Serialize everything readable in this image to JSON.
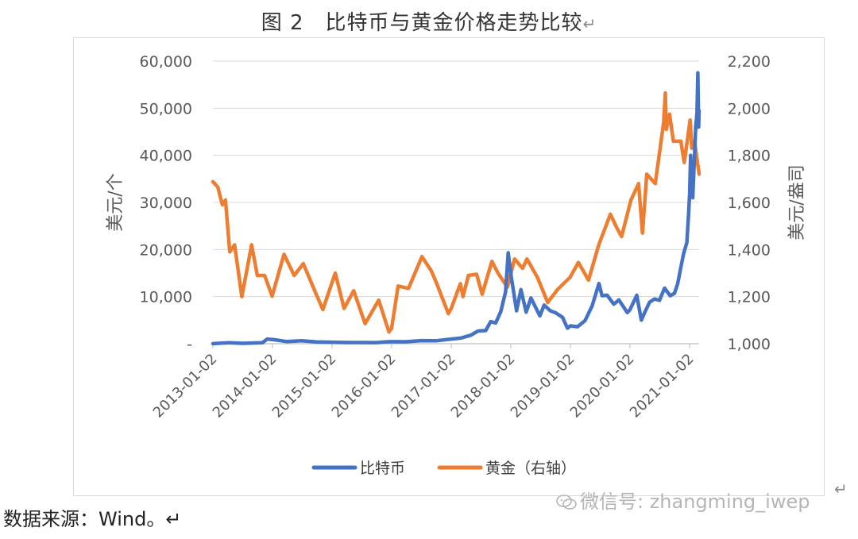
{
  "figure": {
    "title": "图 2　比特币与黄金价格走势比较",
    "return_mark": "↵"
  },
  "source_text": "数据来源：Wind。↵",
  "watermark": "微信号: zhangming_iwep",
  "colors": {
    "btc": "#4472c4",
    "gold": "#ed7d31",
    "grid": "#d9d9d9",
    "axis": "#bfbfbf"
  },
  "chart_data": {
    "type": "line",
    "title": "",
    "xlabel": "",
    "ylabel": "美元/个",
    "y2label": "美元/盎司",
    "xlim": [
      "2013-01-02",
      "2021-03-01"
    ],
    "ylim": [
      0,
      60000
    ],
    "y2lim": [
      1000,
      2200
    ],
    "x_ticks": [
      "2013-01-02",
      "2014-01-02",
      "2015-01-02",
      "2016-01-02",
      "2017-01-02",
      "2018-01-02",
      "2019-01-02",
      "2020-01-02",
      "2021-01-02"
    ],
    "y_ticks_left": [
      "-",
      "10,000",
      "20,000",
      "30,000",
      "40,000",
      "50,000",
      "60,000"
    ],
    "y_ticks_right": [
      "1,000",
      "1,200",
      "1,400",
      "1,600",
      "1,800",
      "2,000",
      "2,200"
    ],
    "legend_position": "bottom",
    "grid": true,
    "series": [
      {
        "name": "比特币",
        "axis": "left",
        "color": "#4472c4",
        "points": [
          [
            "2013-01-02",
            13
          ],
          [
            "2013-04-10",
            200
          ],
          [
            "2013-07-01",
            90
          ],
          [
            "2013-11-01",
            200
          ],
          [
            "2013-12-01",
            1000
          ],
          [
            "2014-01-15",
            850
          ],
          [
            "2014-04-01",
            450
          ],
          [
            "2014-07-01",
            620
          ],
          [
            "2014-10-01",
            380
          ],
          [
            "2015-01-02",
            320
          ],
          [
            "2015-04-01",
            250
          ],
          [
            "2015-07-01",
            260
          ],
          [
            "2015-10-01",
            240
          ],
          [
            "2015-12-01",
            400
          ],
          [
            "2016-01-02",
            430
          ],
          [
            "2016-04-01",
            420
          ],
          [
            "2016-07-01",
            650
          ],
          [
            "2016-10-01",
            620
          ],
          [
            "2017-01-02",
            1000
          ],
          [
            "2017-03-01",
            1200
          ],
          [
            "2017-05-01",
            1800
          ],
          [
            "2017-06-15",
            2700
          ],
          [
            "2017-08-01",
            2800
          ],
          [
            "2017-09-01",
            4700
          ],
          [
            "2017-10-01",
            4400
          ],
          [
            "2017-11-01",
            6800
          ],
          [
            "2017-12-01",
            11000
          ],
          [
            "2017-12-17",
            19300
          ],
          [
            "2018-01-02",
            14800
          ],
          [
            "2018-02-06",
            7000
          ],
          [
            "2018-03-05",
            11500
          ],
          [
            "2018-04-06",
            6700
          ],
          [
            "2018-05-05",
            9700
          ],
          [
            "2018-06-29",
            5900
          ],
          [
            "2018-07-25",
            8200
          ],
          [
            "2018-09-01",
            7000
          ],
          [
            "2018-10-01",
            6600
          ],
          [
            "2018-11-15",
            5600
          ],
          [
            "2018-12-15",
            3300
          ],
          [
            "2019-01-02",
            3800
          ],
          [
            "2019-02-15",
            3600
          ],
          [
            "2019-04-02",
            4900
          ],
          [
            "2019-05-15",
            8000
          ],
          [
            "2019-06-26",
            12800
          ],
          [
            "2019-07-15",
            10200
          ],
          [
            "2019-08-15",
            10300
          ],
          [
            "2019-09-25",
            8400
          ],
          [
            "2019-10-26",
            9300
          ],
          [
            "2019-12-17",
            6600
          ],
          [
            "2020-01-02",
            7200
          ],
          [
            "2020-02-13",
            10300
          ],
          [
            "2020-03-12",
            5000
          ],
          [
            "2020-04-01",
            6600
          ],
          [
            "2020-05-01",
            8800
          ],
          [
            "2020-06-01",
            9500
          ],
          [
            "2020-07-01",
            9200
          ],
          [
            "2020-08-01",
            11800
          ],
          [
            "2020-09-05",
            10200
          ],
          [
            "2020-10-01",
            10700
          ],
          [
            "2020-10-21",
            12800
          ],
          [
            "2020-11-05",
            15500
          ],
          [
            "2020-11-25",
            19000
          ],
          [
            "2020-12-16",
            21500
          ],
          [
            "2020-12-27",
            28000
          ],
          [
            "2021-01-02",
            32000
          ],
          [
            "2021-01-08",
            40000
          ],
          [
            "2021-01-12",
            33000
          ],
          [
            "2021-01-21",
            31000
          ],
          [
            "2021-02-08",
            46000
          ],
          [
            "2021-02-16",
            49000
          ],
          [
            "2021-02-21",
            57500
          ],
          [
            "2021-02-26",
            46000
          ],
          [
            "2021-03-01",
            49500
          ]
        ]
      },
      {
        "name": "黄金（右轴）",
        "axis": "right",
        "color": "#ed7d31",
        "points": [
          [
            "2013-01-02",
            1688
          ],
          [
            "2013-02-01",
            1665
          ],
          [
            "2013-03-01",
            1590
          ],
          [
            "2013-03-20",
            1610
          ],
          [
            "2013-04-15",
            1390
          ],
          [
            "2013-05-15",
            1420
          ],
          [
            "2013-06-28",
            1200
          ],
          [
            "2013-08-27",
            1420
          ],
          [
            "2013-10-01",
            1290
          ],
          [
            "2013-11-15",
            1290
          ],
          [
            "2013-12-31",
            1202
          ],
          [
            "2014-03-14",
            1380
          ],
          [
            "2014-05-15",
            1290
          ],
          [
            "2014-07-10",
            1340
          ],
          [
            "2014-09-15",
            1230
          ],
          [
            "2014-11-07",
            1145
          ],
          [
            "2015-01-22",
            1300
          ],
          [
            "2015-03-17",
            1150
          ],
          [
            "2015-05-15",
            1225
          ],
          [
            "2015-07-24",
            1085
          ],
          [
            "2015-10-15",
            1185
          ],
          [
            "2015-12-17",
            1050
          ],
          [
            "2016-01-02",
            1065
          ],
          [
            "2016-02-11",
            1245
          ],
          [
            "2016-04-15",
            1235
          ],
          [
            "2016-07-06",
            1370
          ],
          [
            "2016-09-01",
            1310
          ],
          [
            "2016-10-05",
            1255
          ],
          [
            "2016-12-15",
            1128
          ],
          [
            "2017-01-02",
            1150
          ],
          [
            "2017-02-27",
            1255
          ],
          [
            "2017-03-15",
            1200
          ],
          [
            "2017-04-17",
            1290
          ],
          [
            "2017-06-06",
            1295
          ],
          [
            "2017-07-10",
            1210
          ],
          [
            "2017-09-08",
            1350
          ],
          [
            "2017-10-15",
            1300
          ],
          [
            "2017-12-12",
            1240
          ],
          [
            "2018-01-25",
            1360
          ],
          [
            "2018-03-15",
            1320
          ],
          [
            "2018-04-11",
            1360
          ],
          [
            "2018-06-15",
            1280
          ],
          [
            "2018-08-16",
            1175
          ],
          [
            "2018-10-15",
            1230
          ],
          [
            "2018-12-31",
            1282
          ],
          [
            "2019-02-20",
            1345
          ],
          [
            "2019-04-23",
            1270
          ],
          [
            "2019-06-25",
            1420
          ],
          [
            "2019-09-04",
            1550
          ],
          [
            "2019-10-15",
            1490
          ],
          [
            "2019-11-12",
            1455
          ],
          [
            "2020-01-08",
            1610
          ],
          [
            "2020-02-24",
            1680
          ],
          [
            "2020-03-19",
            1470
          ],
          [
            "2020-04-14",
            1720
          ],
          [
            "2020-06-05",
            1680
          ],
          [
            "2020-07-27",
            1940
          ],
          [
            "2020-08-06",
            2065
          ],
          [
            "2020-08-12",
            1910
          ],
          [
            "2020-09-01",
            1975
          ],
          [
            "2020-09-24",
            1860
          ],
          [
            "2020-11-09",
            1860
          ],
          [
            "2020-11-30",
            1770
          ],
          [
            "2021-01-05",
            1950
          ],
          [
            "2021-01-15",
            1830
          ],
          [
            "2021-02-01",
            1860
          ],
          [
            "2021-02-15",
            1790
          ],
          [
            "2021-03-01",
            1720
          ]
        ]
      }
    ]
  }
}
